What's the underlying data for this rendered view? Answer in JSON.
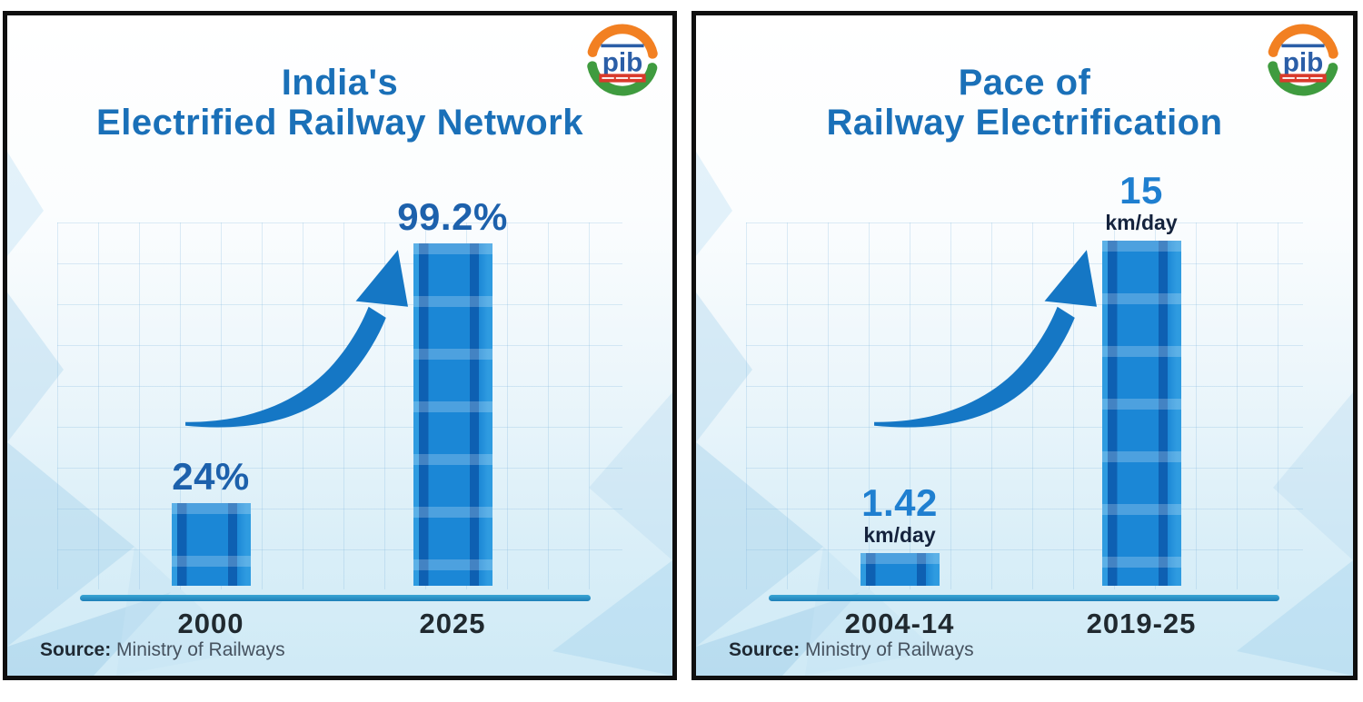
{
  "chart_data": [
    {
      "type": "bar",
      "panel": "left",
      "title": "India's Electrified Railway Network",
      "title_lines": [
        "India's",
        "Electrified Railway Network"
      ],
      "categories": [
        "2000",
        "2025"
      ],
      "values": [
        24,
        99.2
      ],
      "value_labels": [
        "24%",
        "99.2%"
      ],
      "unit": "%",
      "ylim": [
        0,
        100
      ],
      "grid": "faint light-blue grid, no visible y-axis",
      "annotations": [
        "curved growth arrow from small bar to tall bar"
      ],
      "source_label": "Source:",
      "source_text": "Ministry of Railways"
    },
    {
      "type": "bar",
      "panel": "right",
      "title": "Pace of Railway Electrification",
      "title_lines": [
        "Pace of",
        "Railway Electrification"
      ],
      "categories": [
        "2004-14",
        "2019-25"
      ],
      "values": [
        1.42,
        15
      ],
      "value_labels": [
        "1.42",
        "15"
      ],
      "unit_label": "km/day",
      "ylim": [
        0,
        15
      ],
      "grid": "faint light-blue grid, no visible y-axis",
      "annotations": [
        "curved growth arrow from small bar to tall bar"
      ],
      "source_label": "Source:",
      "source_text": "Ministry of Railways"
    }
  ],
  "logo": {
    "text": "pib"
  },
  "colors": {
    "title_blue": "#1a70b8",
    "value_blue_left": "#1d61ac",
    "value_blue_right": "#1f7fd0",
    "unit_dark": "#15233d",
    "tick_dark": "#20292f",
    "source_dark": "#1f2933",
    "axis_teal": "#2191c9",
    "bar_blue": "#1b87d6",
    "bar_rail_dark": "#0e60b2",
    "arrow_blue": "#1577c5",
    "panel_border": "#0f0f0f",
    "background_bottom": "#cfeaf6"
  }
}
